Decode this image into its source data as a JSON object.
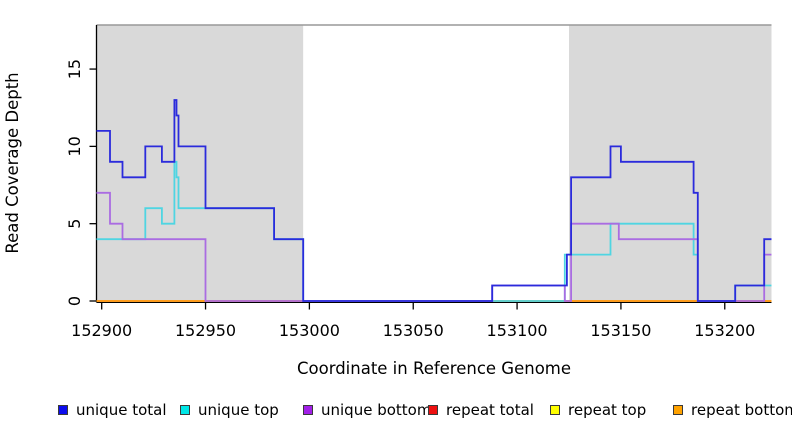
{
  "figure": {
    "xlabel": "Coordinate in Reference Genome",
    "ylabel": "Read Coverage Depth"
  },
  "chart_data": {
    "type": "line",
    "subtype": "step",
    "title": "",
    "xlabel": "Coordinate in Reference Genome",
    "ylabel": "Read Coverage Depth",
    "xlim": [
      152897.5,
      153222.5
    ],
    "ylim": [
      0,
      17.85
    ],
    "x_ticks": [
      152900,
      152950,
      153000,
      153050,
      153100,
      153150,
      153200
    ],
    "y_ticks": [
      0,
      5,
      10,
      15
    ],
    "grid": false,
    "legend_position": "bottom",
    "panel_top_border_color": "#999999",
    "axis_color": "#000000",
    "shaded_regions": [
      {
        "x_from": 152897.5,
        "x_to": 152997,
        "color": "#d9d9d9"
      },
      {
        "x_from": 153125,
        "x_to": 153222.5,
        "color": "#d9d9d9"
      }
    ],
    "series": [
      {
        "name": "unique total",
        "color": "#2b2bdc",
        "legend_color": "#0d0dee",
        "steps": [
          [
            152897.5,
            11
          ],
          [
            152904,
            9
          ],
          [
            152910,
            8
          ],
          [
            152921,
            10
          ],
          [
            152929,
            9
          ],
          [
            152935,
            13
          ],
          [
            152936,
            12
          ],
          [
            152937,
            10
          ],
          [
            152950,
            6
          ],
          [
            152983,
            4
          ],
          [
            152997,
            0
          ],
          [
            153088,
            1
          ],
          [
            153124,
            3
          ],
          [
            153126,
            8
          ],
          [
            153145,
            10
          ],
          [
            153150,
            9
          ],
          [
            153185,
            7
          ],
          [
            153187,
            0
          ],
          [
            153205,
            1
          ],
          [
            153219,
            4
          ],
          [
            153222.5,
            4
          ]
        ]
      },
      {
        "name": "unique top",
        "color": "#4fd5e2",
        "legend_color": "#00e6e6",
        "steps": [
          [
            152897.5,
            4
          ],
          [
            152921,
            6
          ],
          [
            152929,
            5
          ],
          [
            152935,
            9
          ],
          [
            152936,
            8
          ],
          [
            152937,
            6
          ],
          [
            152983,
            4
          ],
          [
            152997,
            0
          ],
          [
            153123,
            3
          ],
          [
            153145,
            5
          ],
          [
            153185,
            3
          ],
          [
            153187,
            0
          ],
          [
            153205,
            1
          ],
          [
            153222.5,
            1
          ]
        ]
      },
      {
        "name": "unique bottom",
        "color": "#aa6ce2",
        "legend_color": "#a21fe8",
        "steps": [
          [
            152897.5,
            7
          ],
          [
            152904,
            5
          ],
          [
            152910,
            4
          ],
          [
            152950,
            0
          ],
          [
            153088,
            1
          ],
          [
            153123,
            0
          ],
          [
            153126,
            5
          ],
          [
            153149,
            4
          ],
          [
            153187,
            0
          ],
          [
            153219,
            3
          ],
          [
            153222.5,
            3
          ]
        ]
      },
      {
        "name": "repeat total",
        "color": "#e03c3c",
        "legend_color": "#ee1111",
        "steps": [
          [
            152897.5,
            0
          ],
          [
            153222.5,
            0
          ]
        ]
      },
      {
        "name": "repeat top",
        "color": "#f0f040",
        "legend_color": "#ffff00",
        "steps": [
          [
            152897.5,
            0
          ],
          [
            153222.5,
            0
          ]
        ]
      },
      {
        "name": "repeat bottom",
        "color": "#ff9519",
        "legend_color": "#ffa200",
        "steps": [
          [
            152897.5,
            0
          ],
          [
            153222.5,
            0
          ]
        ]
      }
    ],
    "draw_order": [
      "repeat total",
      "repeat top",
      "repeat bottom",
      "unique top",
      "unique bottom",
      "unique total"
    ]
  }
}
